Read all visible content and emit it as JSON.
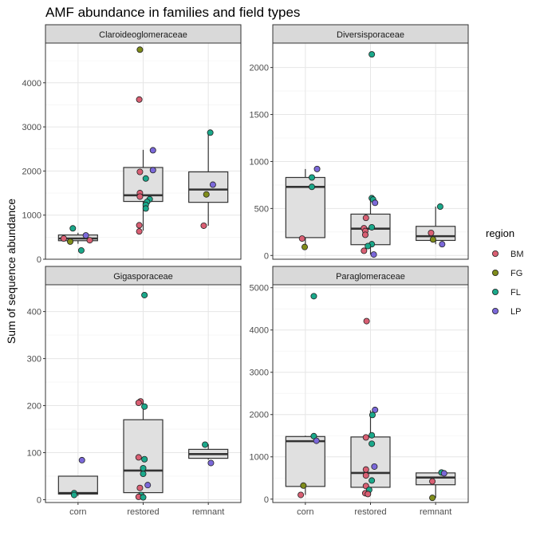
{
  "title": "AMF abundance in families and field types",
  "ylabel": "Sum of sequence abundance",
  "legend": {
    "title": "region",
    "items": [
      {
        "label": "BM",
        "color": "#d95f73"
      },
      {
        "label": "FG",
        "color": "#7f8c1a"
      },
      {
        "label": "FL",
        "color": "#1aa88a"
      },
      {
        "label": "LP",
        "color": "#7b68d9"
      }
    ]
  },
  "chart_data": [
    {
      "type": "boxplot",
      "facet": "Claroideoglomeraceae",
      "categories": [
        "corn",
        "restored",
        "remnant"
      ],
      "ylim": [
        0,
        4900
      ],
      "yticks": [
        0,
        1000,
        2000,
        3000,
        4000
      ],
      "boxes": [
        {
          "category": "corn",
          "min": 350,
          "q1": 420,
          "median": 470,
          "q3": 550,
          "max": 600
        },
        {
          "category": "restored",
          "min": 650,
          "q1": 1310,
          "median": 1450,
          "q3": 2080,
          "max": 2480
        },
        {
          "category": "remnant",
          "min": 760,
          "q1": 1290,
          "median": 1580,
          "q3": 1980,
          "max": 2870
        }
      ],
      "points": [
        {
          "category": "corn",
          "region": "FL",
          "y": 700,
          "jitter": -0.08
        },
        {
          "category": "corn",
          "region": "FL",
          "y": 200,
          "jitter": 0.05
        },
        {
          "category": "corn",
          "region": "BM",
          "y": 470,
          "jitter": -0.22
        },
        {
          "category": "corn",
          "region": "FG",
          "y": 400,
          "jitter": -0.12
        },
        {
          "category": "corn",
          "region": "LP",
          "y": 540,
          "jitter": 0.12
        },
        {
          "category": "corn",
          "region": "BM",
          "y": 430,
          "jitter": 0.18
        },
        {
          "category": "restored",
          "region": "FG",
          "y": 4750,
          "jitter": -0.05
        },
        {
          "category": "restored",
          "region": "BM",
          "y": 3620,
          "jitter": -0.06
        },
        {
          "category": "restored",
          "region": "LP",
          "y": 2470,
          "jitter": 0.15
        },
        {
          "category": "restored",
          "region": "LP",
          "y": 2020,
          "jitter": 0.15
        },
        {
          "category": "restored",
          "region": "BM",
          "y": 1980,
          "jitter": -0.05
        },
        {
          "category": "restored",
          "region": "FL",
          "y": 1830,
          "jitter": 0.04
        },
        {
          "category": "restored",
          "region": "BM",
          "y": 1500,
          "jitter": -0.05
        },
        {
          "category": "restored",
          "region": "BM",
          "y": 1420,
          "jitter": -0.05
        },
        {
          "category": "restored",
          "region": "FL",
          "y": 1360,
          "jitter": 0.1
        },
        {
          "category": "restored",
          "region": "FL",
          "y": 1300,
          "jitter": 0.06
        },
        {
          "category": "restored",
          "region": "FL",
          "y": 1230,
          "jitter": 0.04
        },
        {
          "category": "restored",
          "region": "FL",
          "y": 1150,
          "jitter": 0.04
        },
        {
          "category": "restored",
          "region": "BM",
          "y": 770,
          "jitter": -0.06
        },
        {
          "category": "restored",
          "region": "BM",
          "y": 630,
          "jitter": -0.06
        },
        {
          "category": "remnant",
          "region": "FL",
          "y": 2870,
          "jitter": 0.03
        },
        {
          "category": "remnant",
          "region": "LP",
          "y": 1690,
          "jitter": 0.07
        },
        {
          "category": "remnant",
          "region": "FG",
          "y": 1470,
          "jitter": -0.03
        },
        {
          "category": "remnant",
          "region": "BM",
          "y": 760,
          "jitter": -0.07
        }
      ]
    },
    {
      "type": "boxplot",
      "facet": "Diversisporaceae",
      "categories": [
        "corn",
        "restored",
        "remnant"
      ],
      "ylim": [
        -40,
        2260
      ],
      "yticks": [
        0,
        500,
        1000,
        1500,
        2000
      ],
      "boxes": [
        {
          "category": "corn",
          "min": 90,
          "q1": 190,
          "median": 730,
          "q3": 830,
          "max": 920
        },
        {
          "category": "restored",
          "min": 10,
          "q1": 115,
          "median": 285,
          "q3": 440,
          "max": 610
        },
        {
          "category": "remnant",
          "min": 120,
          "q1": 160,
          "median": 205,
          "q3": 310,
          "max": 520
        }
      ],
      "points": [
        {
          "category": "corn",
          "region": "LP",
          "y": 920,
          "jitter": 0.18
        },
        {
          "category": "corn",
          "region": "FL",
          "y": 830,
          "jitter": 0.1
        },
        {
          "category": "corn",
          "region": "FL",
          "y": 730,
          "jitter": 0.1
        },
        {
          "category": "corn",
          "region": "BM",
          "y": 180,
          "jitter": -0.05
        },
        {
          "category": "corn",
          "region": "FG",
          "y": 90,
          "jitter": -0.01
        },
        {
          "category": "restored",
          "region": "FL",
          "y": 2140,
          "jitter": 0.02
        },
        {
          "category": "restored",
          "region": "FL",
          "y": 610,
          "jitter": 0.02
        },
        {
          "category": "restored",
          "region": "FL",
          "y": 595,
          "jitter": 0.04
        },
        {
          "category": "restored",
          "region": "LP",
          "y": 560,
          "jitter": 0.07
        },
        {
          "category": "restored",
          "region": "BM",
          "y": 400,
          "jitter": -0.07
        },
        {
          "category": "restored",
          "region": "FL",
          "y": 300,
          "jitter": 0.02
        },
        {
          "category": "restored",
          "region": "BM",
          "y": 290,
          "jitter": -0.1
        },
        {
          "category": "restored",
          "region": "BM",
          "y": 260,
          "jitter": -0.08
        },
        {
          "category": "restored",
          "region": "BM",
          "y": 220,
          "jitter": -0.08
        },
        {
          "category": "restored",
          "region": "FL",
          "y": 120,
          "jitter": 0.02
        },
        {
          "category": "restored",
          "region": "FL",
          "y": 100,
          "jitter": -0.04
        },
        {
          "category": "restored",
          "region": "BM",
          "y": 50,
          "jitter": -0.1
        },
        {
          "category": "restored",
          "region": "LP",
          "y": 10,
          "jitter": 0.05
        },
        {
          "category": "remnant",
          "region": "FL",
          "y": 520,
          "jitter": 0.07
        },
        {
          "category": "remnant",
          "region": "BM",
          "y": 240,
          "jitter": -0.07
        },
        {
          "category": "remnant",
          "region": "FG",
          "y": 170,
          "jitter": -0.04
        },
        {
          "category": "remnant",
          "region": "LP",
          "y": 120,
          "jitter": 0.1
        }
      ]
    },
    {
      "type": "boxplot",
      "facet": "Gigasporaceae",
      "categories": [
        "corn",
        "restored",
        "remnant"
      ],
      "ylim": [
        -6,
        457
      ],
      "yticks": [
        0,
        100,
        200,
        300,
        400
      ],
      "boxes": [
        {
          "category": "corn",
          "min": 8,
          "q1": 12,
          "median": 14,
          "q3": 50,
          "max": 50
        },
        {
          "category": "restored",
          "min": 5,
          "q1": 15,
          "median": 62,
          "q3": 170,
          "max": 210
        },
        {
          "category": "remnant",
          "min": 85,
          "q1": 88,
          "median": 97,
          "q3": 107,
          "max": 118
        }
      ],
      "points": [
        {
          "category": "corn",
          "region": "LP",
          "y": 84,
          "jitter": 0.06
        },
        {
          "category": "corn",
          "region": "FL",
          "y": 14,
          "jitter": -0.06
        },
        {
          "category": "corn",
          "region": "FL",
          "y": 10,
          "jitter": -0.06
        },
        {
          "category": "restored",
          "region": "FL",
          "y": 435,
          "jitter": 0.02
        },
        {
          "category": "restored",
          "region": "BM",
          "y": 209,
          "jitter": -0.04
        },
        {
          "category": "restored",
          "region": "BM",
          "y": 206,
          "jitter": -0.07
        },
        {
          "category": "restored",
          "region": "FL",
          "y": 198,
          "jitter": 0.02
        },
        {
          "category": "restored",
          "region": "BM",
          "y": 90,
          "jitter": -0.07
        },
        {
          "category": "restored",
          "region": "FL",
          "y": 86,
          "jitter": 0.02
        },
        {
          "category": "restored",
          "region": "FL",
          "y": 67,
          "jitter": 0.0
        },
        {
          "category": "restored",
          "region": "FL",
          "y": 55,
          "jitter": 0.0
        },
        {
          "category": "restored",
          "region": "LP",
          "y": 31,
          "jitter": 0.07
        },
        {
          "category": "restored",
          "region": "BM",
          "y": 25,
          "jitter": -0.05
        },
        {
          "category": "restored",
          "region": "FL",
          "y": 10,
          "jitter": -0.03
        },
        {
          "category": "restored",
          "region": "BM",
          "y": 6,
          "jitter": -0.07
        },
        {
          "category": "restored",
          "region": "FL",
          "y": 5,
          "jitter": 0.0
        },
        {
          "category": "remnant",
          "region": "FL",
          "y": 117,
          "jitter": -0.05
        },
        {
          "category": "remnant",
          "region": "LP",
          "y": 78,
          "jitter": 0.04
        }
      ]
    },
    {
      "type": "boxplot",
      "facet": "Paraglomeraceae",
      "categories": [
        "corn",
        "restored",
        "remnant"
      ],
      "ylim": [
        -80,
        5070
      ],
      "yticks": [
        0,
        1000,
        2000,
        3000,
        4000,
        5000
      ],
      "boxes": [
        {
          "category": "corn",
          "min": 100,
          "q1": 300,
          "median": 1370,
          "q3": 1480,
          "max": 1500
        },
        {
          "category": "restored",
          "min": 100,
          "q1": 280,
          "median": 620,
          "q3": 1470,
          "max": 2100
        },
        {
          "category": "remnant",
          "min": 30,
          "q1": 340,
          "median": 510,
          "q3": 620,
          "max": 630
        }
      ],
      "points": [
        {
          "category": "corn",
          "region": "FL",
          "y": 4800,
          "jitter": 0.13
        },
        {
          "category": "corn",
          "region": "FL",
          "y": 1490,
          "jitter": 0.13
        },
        {
          "category": "corn",
          "region": "LP",
          "y": 1380,
          "jitter": 0.17
        },
        {
          "category": "corn",
          "region": "FG",
          "y": 320,
          "jitter": -0.03
        },
        {
          "category": "corn",
          "region": "BM",
          "y": 100,
          "jitter": -0.07
        },
        {
          "category": "restored",
          "region": "BM",
          "y": 4210,
          "jitter": -0.06
        },
        {
          "category": "restored",
          "region": "LP",
          "y": 2110,
          "jitter": 0.07
        },
        {
          "category": "restored",
          "region": "FL",
          "y": 1990,
          "jitter": 0.03
        },
        {
          "category": "restored",
          "region": "FL",
          "y": 1510,
          "jitter": 0.02
        },
        {
          "category": "restored",
          "region": "BM",
          "y": 1460,
          "jitter": -0.07
        },
        {
          "category": "restored",
          "region": "FL",
          "y": 1310,
          "jitter": 0.02
        },
        {
          "category": "restored",
          "region": "LP",
          "y": 770,
          "jitter": 0.06
        },
        {
          "category": "restored",
          "region": "BM",
          "y": 700,
          "jitter": -0.07
        },
        {
          "category": "restored",
          "region": "BM",
          "y": 560,
          "jitter": -0.07
        },
        {
          "category": "restored",
          "region": "FL",
          "y": 440,
          "jitter": 0.02
        },
        {
          "category": "restored",
          "region": "BM",
          "y": 310,
          "jitter": -0.07
        },
        {
          "category": "restored",
          "region": "FL",
          "y": 220,
          "jitter": -0.02
        },
        {
          "category": "restored",
          "region": "BM",
          "y": 140,
          "jitter": -0.08
        },
        {
          "category": "restored",
          "region": "BM",
          "y": 120,
          "jitter": -0.04
        },
        {
          "category": "remnant",
          "region": "FL",
          "y": 630,
          "jitter": 0.09
        },
        {
          "category": "remnant",
          "region": "LP",
          "y": 610,
          "jitter": 0.13
        },
        {
          "category": "remnant",
          "region": "BM",
          "y": 420,
          "jitter": -0.05
        },
        {
          "category": "remnant",
          "region": "FG",
          "y": 30,
          "jitter": -0.05
        }
      ]
    }
  ]
}
